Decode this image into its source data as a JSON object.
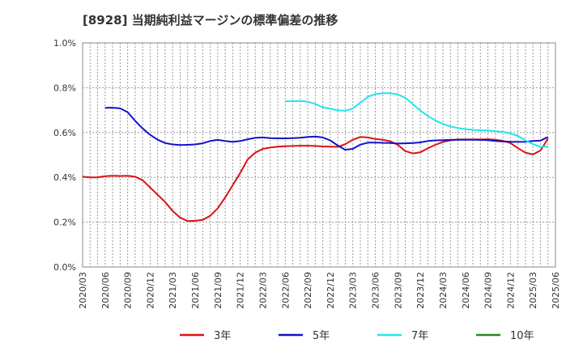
{
  "chart_data": {
    "type": "line",
    "title": "[8928]  当期純利益マージンの標準偏差の推移",
    "xlabel": "",
    "ylabel": "",
    "ylim": [
      0,
      1.0
    ],
    "y_ticks": [
      "0.0%",
      "0.2%",
      "0.4%",
      "0.6%",
      "0.8%",
      "1.0%"
    ],
    "y_tick_values": [
      0,
      0.2,
      0.4,
      0.6,
      0.8,
      1.0
    ],
    "x_ticks": [
      "2020/03",
      "2020/06",
      "2020/09",
      "2020/12",
      "2021/03",
      "2021/06",
      "2021/09",
      "2021/12",
      "2022/03",
      "2022/06",
      "2022/09",
      "2022/12",
      "2023/03",
      "2023/06",
      "2023/09",
      "2023/12",
      "2024/03",
      "2024/06",
      "2024/09",
      "2024/12",
      "2025/03",
      "2025/06"
    ],
    "grid": true,
    "legend_position": "bottom",
    "series": [
      {
        "name": "3年",
        "color": "#dd1111",
        "points": [
          [
            "2020/03",
            0.403
          ],
          [
            "2020/04",
            0.4
          ],
          [
            "2020/05",
            0.4
          ],
          [
            "2020/06",
            0.405
          ],
          [
            "2020/07",
            0.407
          ],
          [
            "2020/08",
            0.406
          ],
          [
            "2020/09",
            0.407
          ],
          [
            "2020/10",
            0.403
          ],
          [
            "2020/11",
            0.387
          ],
          [
            "2020/12",
            0.355
          ],
          [
            "2021/01",
            0.322
          ],
          [
            "2021/02",
            0.29
          ],
          [
            "2021/03",
            0.25
          ],
          [
            "2021/04",
            0.22
          ],
          [
            "2021/05",
            0.205
          ],
          [
            "2021/06",
            0.206
          ],
          [
            "2021/07",
            0.21
          ],
          [
            "2021/08",
            0.228
          ],
          [
            "2021/09",
            0.262
          ],
          [
            "2021/10",
            0.31
          ],
          [
            "2021/11",
            0.365
          ],
          [
            "2021/12",
            0.42
          ],
          [
            "2022/01",
            0.48
          ],
          [
            "2022/02",
            0.51
          ],
          [
            "2022/03",
            0.527
          ],
          [
            "2022/04",
            0.533
          ],
          [
            "2022/05",
            0.537
          ],
          [
            "2022/06",
            0.539
          ],
          [
            "2022/07",
            0.54
          ],
          [
            "2022/08",
            0.541
          ],
          [
            "2022/09",
            0.541
          ],
          [
            "2022/10",
            0.54
          ],
          [
            "2022/11",
            0.538
          ],
          [
            "2022/12",
            0.537
          ],
          [
            "2023/01",
            0.536
          ],
          [
            "2023/02",
            0.548
          ],
          [
            "2023/03",
            0.568
          ],
          [
            "2023/04",
            0.58
          ],
          [
            "2023/05",
            0.578
          ],
          [
            "2023/06",
            0.571
          ],
          [
            "2023/07",
            0.568
          ],
          [
            "2023/08",
            0.561
          ],
          [
            "2023/09",
            0.545
          ],
          [
            "2023/10",
            0.517
          ],
          [
            "2023/11",
            0.507
          ],
          [
            "2023/12",
            0.512
          ],
          [
            "2024/01",
            0.53
          ],
          [
            "2024/02",
            0.545
          ],
          [
            "2024/03",
            0.558
          ],
          [
            "2024/04",
            0.565
          ],
          [
            "2024/05",
            0.569
          ],
          [
            "2024/06",
            0.569
          ],
          [
            "2024/07",
            0.569
          ],
          [
            "2024/08",
            0.569
          ],
          [
            "2024/09",
            0.57
          ],
          [
            "2024/10",
            0.568
          ],
          [
            "2024/11",
            0.563
          ],
          [
            "2024/12",
            0.553
          ],
          [
            "2025/01",
            0.53
          ],
          [
            "2025/02",
            0.51
          ],
          [
            "2025/03",
            0.502
          ],
          [
            "2025/04",
            0.52
          ],
          [
            "2025/05",
            0.573
          ]
        ]
      },
      {
        "name": "5年",
        "color": "#1111cc",
        "points": [
          [
            "2020/06",
            0.71
          ],
          [
            "2020/07",
            0.711
          ],
          [
            "2020/08",
            0.708
          ],
          [
            "2020/09",
            0.691
          ],
          [
            "2020/10",
            0.652
          ],
          [
            "2020/11",
            0.618
          ],
          [
            "2020/12",
            0.59
          ],
          [
            "2021/01",
            0.568
          ],
          [
            "2021/02",
            0.553
          ],
          [
            "2021/03",
            0.547
          ],
          [
            "2021/04",
            0.544
          ],
          [
            "2021/05",
            0.545
          ],
          [
            "2021/06",
            0.547
          ],
          [
            "2021/07",
            0.552
          ],
          [
            "2021/08",
            0.562
          ],
          [
            "2021/09",
            0.567
          ],
          [
            "2021/10",
            0.562
          ],
          [
            "2021/11",
            0.558
          ],
          [
            "2021/12",
            0.562
          ],
          [
            "2022/01",
            0.57
          ],
          [
            "2022/02",
            0.576
          ],
          [
            "2022/03",
            0.578
          ],
          [
            "2022/04",
            0.575
          ],
          [
            "2022/05",
            0.574
          ],
          [
            "2022/06",
            0.574
          ],
          [
            "2022/07",
            0.575
          ],
          [
            "2022/08",
            0.577
          ],
          [
            "2022/09",
            0.58
          ],
          [
            "2022/10",
            0.582
          ],
          [
            "2022/11",
            0.578
          ],
          [
            "2022/12",
            0.565
          ],
          [
            "2023/01",
            0.542
          ],
          [
            "2023/02",
            0.523
          ],
          [
            "2023/03",
            0.527
          ],
          [
            "2023/04",
            0.546
          ],
          [
            "2023/05",
            0.555
          ],
          [
            "2023/06",
            0.555
          ],
          [
            "2023/07",
            0.554
          ],
          [
            "2023/08",
            0.553
          ],
          [
            "2023/09",
            0.551
          ],
          [
            "2023/10",
            0.552
          ],
          [
            "2023/11",
            0.553
          ],
          [
            "2023/12",
            0.556
          ],
          [
            "2024/01",
            0.562
          ],
          [
            "2024/02",
            0.565
          ],
          [
            "2024/03",
            0.566
          ],
          [
            "2024/04",
            0.567
          ],
          [
            "2024/05",
            0.568
          ],
          [
            "2024/06",
            0.568
          ],
          [
            "2024/07",
            0.568
          ],
          [
            "2024/08",
            0.567
          ],
          [
            "2024/09",
            0.566
          ],
          [
            "2024/10",
            0.562
          ],
          [
            "2024/11",
            0.56
          ],
          [
            "2024/12",
            0.559
          ],
          [
            "2025/01",
            0.558
          ],
          [
            "2025/02",
            0.559
          ],
          [
            "2025/03",
            0.562
          ],
          [
            "2025/04",
            0.564
          ],
          [
            "2025/05",
            0.58
          ]
        ]
      },
      {
        "name": "7年",
        "color": "#22e5ee",
        "points": [
          [
            "2022/06",
            0.739
          ],
          [
            "2022/07",
            0.74
          ],
          [
            "2022/08",
            0.741
          ],
          [
            "2022/09",
            0.738
          ],
          [
            "2022/10",
            0.727
          ],
          [
            "2022/11",
            0.713
          ],
          [
            "2022/12",
            0.706
          ],
          [
            "2023/01",
            0.699
          ],
          [
            "2023/02",
            0.697
          ],
          [
            "2023/03",
            0.708
          ],
          [
            "2023/04",
            0.733
          ],
          [
            "2023/05",
            0.76
          ],
          [
            "2023/06",
            0.771
          ],
          [
            "2023/07",
            0.775
          ],
          [
            "2023/08",
            0.775
          ],
          [
            "2023/09",
            0.77
          ],
          [
            "2023/10",
            0.755
          ],
          [
            "2023/11",
            0.726
          ],
          [
            "2023/12",
            0.698
          ],
          [
            "2024/01",
            0.674
          ],
          [
            "2024/02",
            0.654
          ],
          [
            "2024/03",
            0.638
          ],
          [
            "2024/04",
            0.627
          ],
          [
            "2024/05",
            0.62
          ],
          [
            "2024/06",
            0.615
          ],
          [
            "2024/07",
            0.612
          ],
          [
            "2024/08",
            0.61
          ],
          [
            "2024/09",
            0.609
          ],
          [
            "2024/10",
            0.606
          ],
          [
            "2024/11",
            0.603
          ],
          [
            "2024/12",
            0.596
          ],
          [
            "2025/01",
            0.585
          ],
          [
            "2025/02",
            0.565
          ],
          [
            "2025/03",
            0.548
          ],
          [
            "2025/04",
            0.536
          ],
          [
            "2025/05",
            0.538
          ]
        ]
      },
      {
        "name": "10年",
        "color": "#228822",
        "points": []
      }
    ]
  }
}
